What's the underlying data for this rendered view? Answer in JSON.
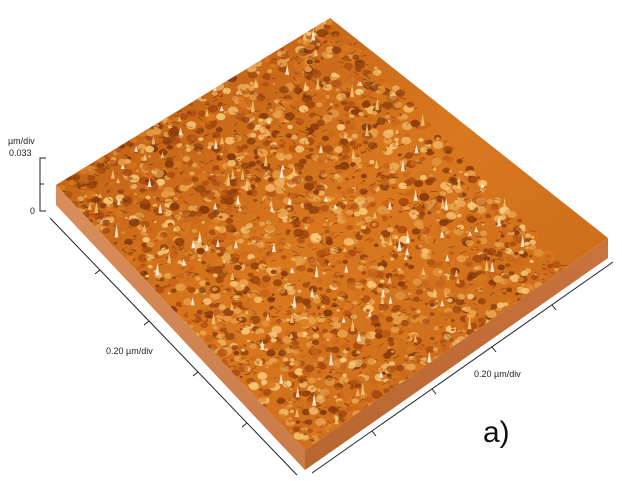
{
  "figure": {
    "z_unit": "µm/div",
    "z_max": "0.033",
    "z_min": "0",
    "x_axis_label": "0.20 µm/div",
    "y_axis_label": "0.20 µm/div",
    "panel_label": "a)"
  },
  "colors": {
    "surface_dark": "#8a3c0c",
    "surface_mid": "#d9781e",
    "surface_light": "#f7c777",
    "peak_highlight": "#fff6e6",
    "base_side": "#d48c58",
    "axis": "#222222"
  }
}
